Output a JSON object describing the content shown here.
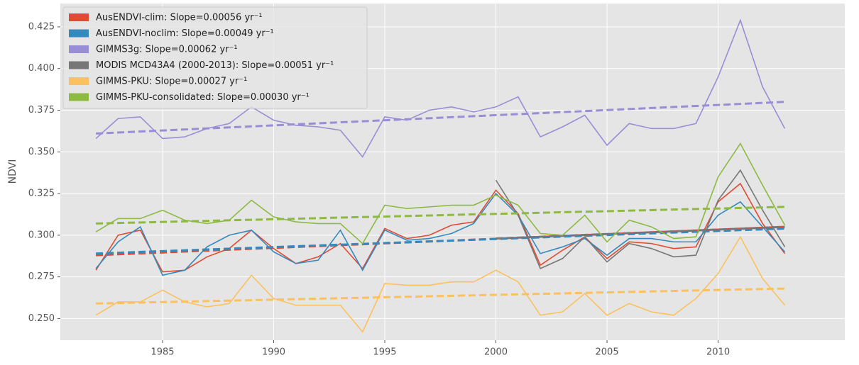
{
  "chart_data": {
    "type": "line",
    "y_label": "NDVI",
    "x": [
      1982,
      1983,
      1984,
      1985,
      1986,
      1987,
      1988,
      1989,
      1990,
      1991,
      1992,
      1993,
      1994,
      1995,
      1996,
      1997,
      1998,
      1999,
      2000,
      2001,
      2002,
      2003,
      2004,
      2005,
      2006,
      2007,
      2008,
      2009,
      2010,
      2011,
      2012,
      2013
    ],
    "xlim": [
      1980.4,
      2015.7
    ],
    "xticks": [
      1985,
      1990,
      1995,
      2000,
      2005,
      2010
    ],
    "ylim": [
      0.237,
      0.439
    ],
    "yticks": [
      {
        "value": 0.25,
        "label": "0.250"
      },
      {
        "value": 0.275,
        "label": "0.275"
      },
      {
        "value": 0.3,
        "label": "0.300"
      },
      {
        "value": 0.325,
        "label": "0.325"
      },
      {
        "value": 0.35,
        "label": "0.350"
      },
      {
        "value": 0.375,
        "label": "0.375"
      },
      {
        "value": 0.4,
        "label": "0.400"
      },
      {
        "value": 0.425,
        "label": "0.425"
      }
    ],
    "grid": true,
    "legend": "upper left",
    "series": [
      {
        "name": "AusENDVI-clim: Slope=0.00056 yr⁻¹",
        "color": "#e24a33",
        "values": [
          0.279,
          0.3,
          0.303,
          0.278,
          0.279,
          0.287,
          0.292,
          0.303,
          0.292,
          0.283,
          0.287,
          0.295,
          0.28,
          0.304,
          0.298,
          0.3,
          0.306,
          0.308,
          0.327,
          0.313,
          0.282,
          0.291,
          0.299,
          0.286,
          0.296,
          0.295,
          0.292,
          0.293,
          0.32,
          0.331,
          0.307,
          0.289
        ],
        "trend": {
          "x": [
            1982,
            2013
          ],
          "values": [
            0.288,
            0.305
          ]
        }
      },
      {
        "name": "AusENDVI-noclim: Slope=0.00049 yr⁻¹",
        "color": "#348abd",
        "values": [
          0.28,
          0.296,
          0.305,
          0.276,
          0.279,
          0.293,
          0.3,
          0.303,
          0.29,
          0.283,
          0.285,
          0.303,
          0.279,
          0.303,
          0.297,
          0.298,
          0.301,
          0.307,
          0.325,
          0.312,
          0.289,
          0.293,
          0.298,
          0.288,
          0.298,
          0.298,
          0.296,
          0.296,
          0.312,
          0.32,
          0.305,
          0.29
        ],
        "trend": {
          "x": [
            1982,
            2013
          ],
          "values": [
            0.289,
            0.304
          ]
        }
      },
      {
        "name": "GIMMS3g: Slope=0.00062 yr⁻¹",
        "color": "#988ed5",
        "values": [
          0.358,
          0.37,
          0.371,
          0.358,
          0.359,
          0.364,
          0.367,
          0.377,
          0.369,
          0.366,
          0.365,
          0.363,
          0.347,
          0.371,
          0.369,
          0.375,
          0.377,
          0.374,
          0.377,
          0.383,
          0.359,
          0.365,
          0.372,
          0.354,
          0.367,
          0.364,
          0.364,
          0.367,
          0.395,
          0.429,
          0.389,
          0.364
        ],
        "trend": {
          "x": [
            1982,
            2013
          ],
          "values": [
            0.361,
            0.38
          ]
        }
      },
      {
        "name": "MODIS MCD43A4 (2000-2013): Slope=0.00051 yr⁻¹",
        "color": "#777777",
        "values": [
          null,
          null,
          null,
          null,
          null,
          null,
          null,
          null,
          null,
          null,
          null,
          null,
          null,
          null,
          null,
          null,
          null,
          null,
          0.333,
          0.312,
          0.28,
          0.286,
          0.299,
          0.284,
          0.295,
          0.292,
          0.287,
          0.288,
          0.321,
          0.339,
          0.315,
          0.293
        ],
        "trend": {
          "x": [
            2000,
            2013
          ],
          "values": [
            0.298,
            0.305
          ]
        }
      },
      {
        "name": "GIMMS-PKU: Slope=0.00027 yr⁻¹",
        "color": "#fbc15e",
        "values": [
          0.252,
          0.26,
          0.26,
          0.267,
          0.26,
          0.257,
          0.259,
          0.276,
          0.262,
          0.258,
          0.258,
          0.258,
          0.242,
          0.271,
          0.27,
          0.27,
          0.272,
          0.272,
          0.279,
          0.272,
          0.252,
          0.254,
          0.265,
          0.252,
          0.259,
          0.254,
          0.252,
          0.262,
          0.277,
          0.299,
          0.274,
          0.258
        ],
        "trend": {
          "x": [
            1982,
            2013
          ],
          "values": [
            0.259,
            0.268
          ]
        }
      },
      {
        "name": "GIMMS-PKU-consolidated: Slope=0.00030 yr⁻¹",
        "color": "#8eba42",
        "values": [
          0.302,
          0.31,
          0.31,
          0.315,
          0.309,
          0.307,
          0.309,
          0.321,
          0.311,
          0.308,
          0.307,
          0.307,
          0.295,
          0.318,
          0.316,
          0.317,
          0.318,
          0.318,
          0.324,
          0.318,
          0.301,
          0.3,
          0.312,
          0.296,
          0.309,
          0.305,
          0.298,
          0.299,
          0.335,
          0.355,
          0.33,
          0.306
        ],
        "trend": {
          "x": [
            1982,
            2013
          ],
          "values": [
            0.307,
            0.317
          ]
        }
      }
    ]
  }
}
